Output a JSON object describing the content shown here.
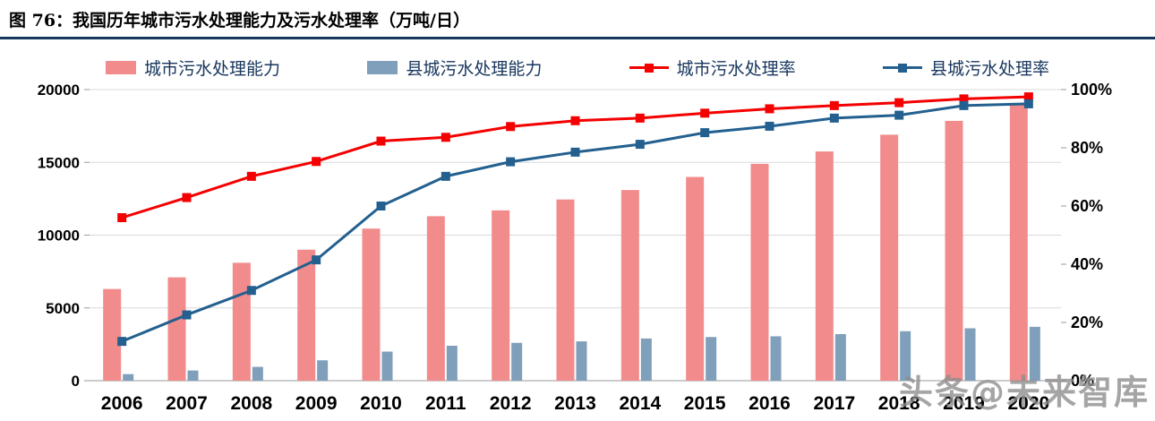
{
  "header": {
    "title": "图 76：我国历年城市污水处理能力及污水处理率（万吨/日）"
  },
  "watermark": "头条@未来智库",
  "chart_data": {
    "type": "bar",
    "subtype": "bar+line combo, dual axis",
    "title": "我国历年城市污水处理能力及污水处理率（万吨/日）",
    "categories": [
      "2006",
      "2007",
      "2008",
      "2009",
      "2010",
      "2011",
      "2012",
      "2013",
      "2014",
      "2015",
      "2016",
      "2017",
      "2018",
      "2019",
      "2020"
    ],
    "bar_series": [
      {
        "name": "城市污水处理能力",
        "axis": "left",
        "color": "#F28C8C",
        "values": [
          6300,
          7100,
          8100,
          9000,
          10450,
          11300,
          11700,
          12450,
          13100,
          14000,
          14900,
          15750,
          16900,
          17850,
          19000
        ]
      },
      {
        "name": "县城污水处理能力",
        "axis": "left",
        "color": "#7F9FBB",
        "values": [
          450,
          700,
          950,
          1400,
          2000,
          2400,
          2600,
          2700,
          2900,
          3000,
          3050,
          3200,
          3400,
          3600,
          3700
        ]
      }
    ],
    "line_series": [
      {
        "name": "城市污水处理率",
        "axis": "right",
        "color": "#F40000",
        "values": [
          56.0,
          62.9,
          70.2,
          75.3,
          82.3,
          83.6,
          87.3,
          89.3,
          90.2,
          91.9,
          93.4,
          94.5,
          95.5,
          96.8,
          97.5
        ]
      },
      {
        "name": "县城污水处理率",
        "axis": "right",
        "color": "#23608F",
        "values": [
          13.5,
          22.6,
          31.0,
          41.5,
          60.0,
          70.2,
          75.2,
          78.5,
          81.2,
          85.2,
          87.4,
          90.2,
          91.2,
          94.5,
          95.1
        ]
      }
    ],
    "left_axis": {
      "min": 0,
      "max": 20000,
      "ticks": [
        0,
        5000,
        10000,
        15000,
        20000
      ],
      "tick_labels": [
        "0",
        "5000",
        "10000",
        "15000",
        "20000"
      ]
    },
    "right_axis": {
      "min": 0,
      "max": 100,
      "ticks": [
        0,
        20,
        40,
        60,
        80,
        100
      ],
      "tick_labels": [
        "0%",
        "20%",
        "40%",
        "60%",
        "80%",
        "100%"
      ]
    },
    "grid": true,
    "legend_position": "top",
    "grid_color": "#D9D9D9",
    "axis_color": "#9A9A9A"
  }
}
